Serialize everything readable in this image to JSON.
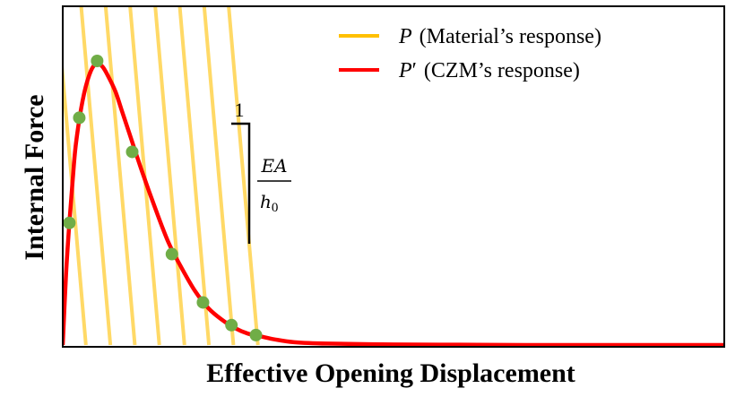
{
  "figure": {
    "x_axis_label": "Effective Opening Displacement",
    "y_axis_label": "Internal Force"
  },
  "legend": {
    "items": [
      {
        "symbol": "P",
        "prime": "",
        "text": "(Material’s response)",
        "color": "#ffc000"
      },
      {
        "symbol": "P",
        "prime": "′",
        "text": "(CZM’s response)",
        "color": "#ff0000"
      }
    ]
  },
  "slope_annotation": {
    "horizontal": "1",
    "numerator": "EA",
    "denominator_base": "h",
    "denominator_sub": "0"
  },
  "colors": {
    "material_lines": "#ffd966",
    "czm_curve": "#ff0000",
    "intersection_points": "#70ad47",
    "frame": "#000000"
  },
  "chart_data": {
    "type": "line",
    "title": "",
    "xlabel": "Effective Opening Displacement",
    "ylabel": "Internal Force",
    "xlim": [
      0,
      10
    ],
    "ylim": [
      0,
      1
    ],
    "grid": false,
    "legend_position": "top-right",
    "series": [
      {
        "name": "P′ (CZM’s response)",
        "kind": "curve",
        "x": [
          0,
          0.05,
          0.1,
          0.15,
          0.2,
          0.3,
          0.4,
          0.5,
          0.6,
          0.7,
          0.8,
          0.9,
          1.0,
          1.2,
          1.4,
          1.6,
          1.8,
          2.0,
          2.2,
          2.4,
          2.6,
          2.8,
          3.0,
          3.2,
          3.5,
          4.0,
          5.0,
          6.0,
          7.0,
          8.0,
          10.0
        ],
        "y": [
          0,
          0.25,
          0.43,
          0.58,
          0.71,
          0.86,
          0.95,
          0.99,
          0.98,
          0.94,
          0.89,
          0.82,
          0.75,
          0.61,
          0.48,
          0.36,
          0.27,
          0.19,
          0.13,
          0.09,
          0.06,
          0.04,
          0.03,
          0.02,
          0.01,
          0.005,
          0.002,
          0.001,
          0,
          0,
          0
        ]
      },
      {
        "name": "P (Material’s response)",
        "kind": "parallel_lines",
        "slope": -2.7,
        "x_intercepts": [
          0.35,
          0.72,
          1.09,
          1.46,
          1.84,
          2.21,
          2.58,
          2.95
        ]
      },
      {
        "name": "intersection points",
        "kind": "points",
        "x": [
          0.1,
          0.25,
          0.52,
          1.05,
          1.65,
          2.12,
          2.55,
          2.92
        ],
        "y": [
          0.43,
          0.8,
          1.0,
          0.68,
          0.32,
          0.15,
          0.07,
          0.035
        ]
      }
    ]
  }
}
